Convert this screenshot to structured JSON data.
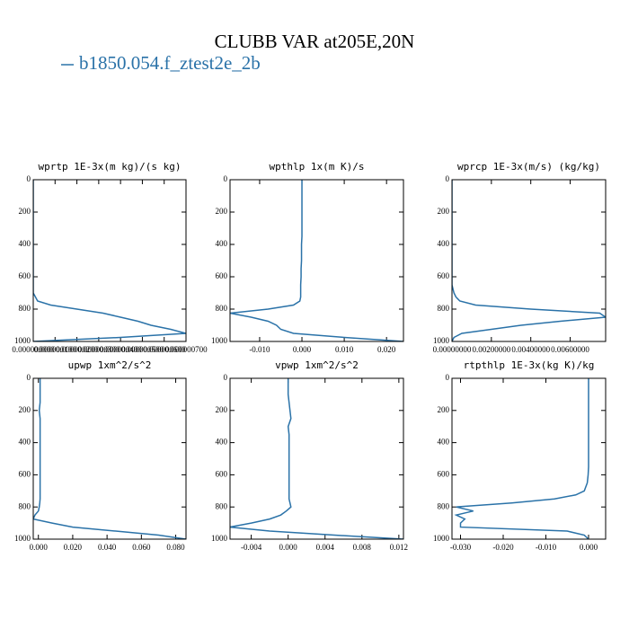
{
  "title": "CLUBB VAR at205E,20N",
  "legend": {
    "name": "b1850.054.f_ztest2e_2b",
    "color": "#2a72a8"
  },
  "chart_data": [
    {
      "type": "line",
      "title": "wprtp  1E-3x(m kg)/(s kg)",
      "y": [
        0,
        50,
        100,
        150,
        200,
        250,
        300,
        350,
        400,
        450,
        500,
        550,
        600,
        650,
        700,
        725,
        750,
        775,
        800,
        825,
        850,
        875,
        900,
        925,
        950,
        975,
        1000
      ],
      "series": [
        {
          "color": "#2a72a8",
          "values": [
            0,
            0,
            0,
            0,
            0,
            0,
            0,
            0,
            0,
            0,
            0,
            0,
            0,
            0,
            0,
            1e-08,
            2e-08,
            8e-08,
            2e-07,
            3.2e-07,
            4e-07,
            4.8e-07,
            5.4e-07,
            6.3e-07,
            7e-07,
            4e-07,
            0
          ]
        }
      ],
      "xlim": [
        0,
        7e-07
      ],
      "xticks": [
        {
          "value": 0,
          "label": "0.000000000"
        },
        {
          "value": 1e-07,
          "label": "0.000000100"
        },
        {
          "value": 2e-07,
          "label": "0.000000200"
        },
        {
          "value": 3e-07,
          "label": "0.000000300"
        },
        {
          "value": 4e-07,
          "label": "0.000000400"
        },
        {
          "value": 5e-07,
          "label": "0.000000500"
        },
        {
          "value": 6e-07,
          "label": "0.000000600"
        },
        {
          "value": 7e-07,
          "label": "0.000000700"
        }
      ],
      "ylim": [
        0,
        1000
      ],
      "yticks": [
        0,
        200,
        400,
        600,
        800,
        1000
      ],
      "y_inverted": true
    },
    {
      "type": "line",
      "title": "wpthlp  1x(m K)/s",
      "y": [
        0,
        50,
        100,
        150,
        200,
        250,
        300,
        350,
        400,
        450,
        500,
        550,
        600,
        650,
        700,
        725,
        750,
        775,
        800,
        825,
        850,
        875,
        900,
        925,
        950,
        975,
        1000
      ],
      "series": [
        {
          "color": "#2a72a8",
          "values": [
            0,
            0,
            0,
            0,
            0,
            0,
            0,
            0,
            -0.0001,
            -0.0001,
            -0.0001,
            -0.0002,
            -0.0002,
            -0.0003,
            -0.0003,
            -0.0003,
            -0.0005,
            -0.002,
            -0.008,
            -0.017,
            -0.012,
            -0.008,
            -0.006,
            -0.005,
            -0.002,
            0.01,
            0.024
          ]
        }
      ],
      "xlim": [
        -0.017,
        0.024
      ],
      "xticks": [
        {
          "value": -0.01,
          "label": "-0.010"
        },
        {
          "value": 0,
          "label": "0.000"
        },
        {
          "value": 0.01,
          "label": "0.010"
        },
        {
          "value": 0.02,
          "label": "0.020"
        }
      ],
      "ylim": [
        0,
        1000
      ],
      "yticks": [
        0,
        200,
        400,
        600,
        800,
        1000
      ],
      "y_inverted": true
    },
    {
      "type": "line",
      "title": "wprcp  1E-3x(m/s) (kg/kg)",
      "y": [
        0,
        50,
        100,
        150,
        200,
        250,
        300,
        350,
        400,
        450,
        500,
        550,
        600,
        650,
        700,
        725,
        750,
        775,
        800,
        825,
        850,
        875,
        900,
        925,
        950,
        975,
        1000
      ],
      "series": [
        {
          "color": "#2a72a8",
          "values": [
            0,
            0,
            0,
            0,
            0,
            0,
            0,
            0,
            0,
            0,
            0,
            0,
            0,
            0,
            0.0001,
            0.0002,
            0.0004,
            0.0012,
            0.004,
            0.0075,
            0.0078,
            0.0055,
            0.0035,
            0.002,
            0.0005,
            0.0001,
            0
          ]
        }
      ],
      "xlim": [
        0,
        0.0078
      ],
      "xticks": [
        {
          "value": 0,
          "label": "0.00000000"
        },
        {
          "value": 0.002,
          "label": "0.00200000"
        },
        {
          "value": 0.004,
          "label": "0.00400000"
        },
        {
          "value": 0.006,
          "label": "0.00600000"
        }
      ],
      "ylim": [
        0,
        1000
      ],
      "yticks": [
        0,
        200,
        400,
        600,
        800,
        1000
      ],
      "y_inverted": true
    },
    {
      "type": "line",
      "title": "upwp  1xm^2/s^2",
      "y": [
        0,
        50,
        100,
        150,
        200,
        250,
        300,
        350,
        400,
        450,
        500,
        550,
        600,
        650,
        700,
        725,
        750,
        775,
        800,
        825,
        850,
        875,
        900,
        925,
        950,
        975,
        1000
      ],
      "series": [
        {
          "color": "#2a72a8",
          "values": [
            0.001,
            0.001,
            0.001,
            0.001,
            0.0005,
            0.001,
            0.001,
            0.001,
            0.001,
            0.001,
            0.001,
            0.001,
            0.001,
            0.001,
            0.001,
            0.001,
            0.001,
            0.0008,
            0.0005,
            0,
            -0.002,
            -0.003,
            0.008,
            0.02,
            0.045,
            0.07,
            0.086
          ]
        }
      ],
      "xlim": [
        -0.003,
        0.086
      ],
      "xticks": [
        {
          "value": 0,
          "label": "0.000"
        },
        {
          "value": 0.02,
          "label": "0.020"
        },
        {
          "value": 0.04,
          "label": "0.040"
        },
        {
          "value": 0.06,
          "label": "0.060"
        },
        {
          "value": 0.08,
          "label": "0.080"
        }
      ],
      "ylim": [
        0,
        1000
      ],
      "yticks": [
        0,
        200,
        400,
        600,
        800,
        1000
      ],
      "y_inverted": true
    },
    {
      "type": "line",
      "title": "vpwp  1xm^2/s^2",
      "y": [
        0,
        50,
        100,
        150,
        200,
        250,
        300,
        350,
        400,
        450,
        500,
        550,
        600,
        650,
        700,
        725,
        750,
        775,
        800,
        825,
        850,
        875,
        900,
        925,
        950,
        975,
        1000
      ],
      "series": [
        {
          "color": "#2a72a8",
          "values": [
            0,
            0,
            0,
            0.0001,
            0.0002,
            0.0003,
            0,
            0.0001,
            0.0001,
            0.0001,
            0.0001,
            0.0001,
            0.0001,
            0.0001,
            0.0001,
            0.0001,
            0.0001,
            0.0002,
            0.0003,
            -0.0002,
            -0.0008,
            -0.002,
            -0.004,
            -0.0063,
            -0.002,
            0.005,
            0.0125
          ]
        }
      ],
      "xlim": [
        -0.0063,
        0.0125
      ],
      "xticks": [
        {
          "value": -0.004,
          "label": "-0.004"
        },
        {
          "value": 0,
          "label": "0.000"
        },
        {
          "value": 0.004,
          "label": "0.004"
        },
        {
          "value": 0.008,
          "label": "0.008"
        },
        {
          "value": 0.012,
          "label": "0.012"
        }
      ],
      "ylim": [
        0,
        1000
      ],
      "yticks": [
        0,
        200,
        400,
        600,
        800,
        1000
      ],
      "y_inverted": true
    },
    {
      "type": "line",
      "title": "rtpthlp  1E-3x(kg K)/kg",
      "y": [
        0,
        50,
        100,
        150,
        200,
        250,
        300,
        350,
        400,
        450,
        500,
        550,
        600,
        650,
        700,
        725,
        750,
        775,
        800,
        825,
        850,
        875,
        900,
        925,
        950,
        975,
        1000
      ],
      "series": [
        {
          "color": "#2a72a8",
          "values": [
            0,
            0,
            0,
            0,
            0,
            0,
            0,
            0,
            0,
            0,
            0,
            0,
            -0.0001,
            -0.0003,
            -0.001,
            -0.003,
            -0.008,
            -0.018,
            -0.031,
            -0.027,
            -0.031,
            -0.029,
            -0.03,
            -0.03,
            -0.005,
            -0.001,
            0
          ]
        }
      ],
      "xlim": [
        -0.032,
        0.004
      ],
      "xticks": [
        {
          "value": -0.03,
          "label": "-0.030"
        },
        {
          "value": -0.02,
          "label": "-0.020"
        },
        {
          "value": -0.01,
          "label": "-0.010"
        },
        {
          "value": 0,
          "label": "0.000"
        }
      ],
      "ylim": [
        0,
        1000
      ],
      "yticks": [
        0,
        200,
        400,
        600,
        800,
        1000
      ],
      "y_inverted": true
    }
  ]
}
